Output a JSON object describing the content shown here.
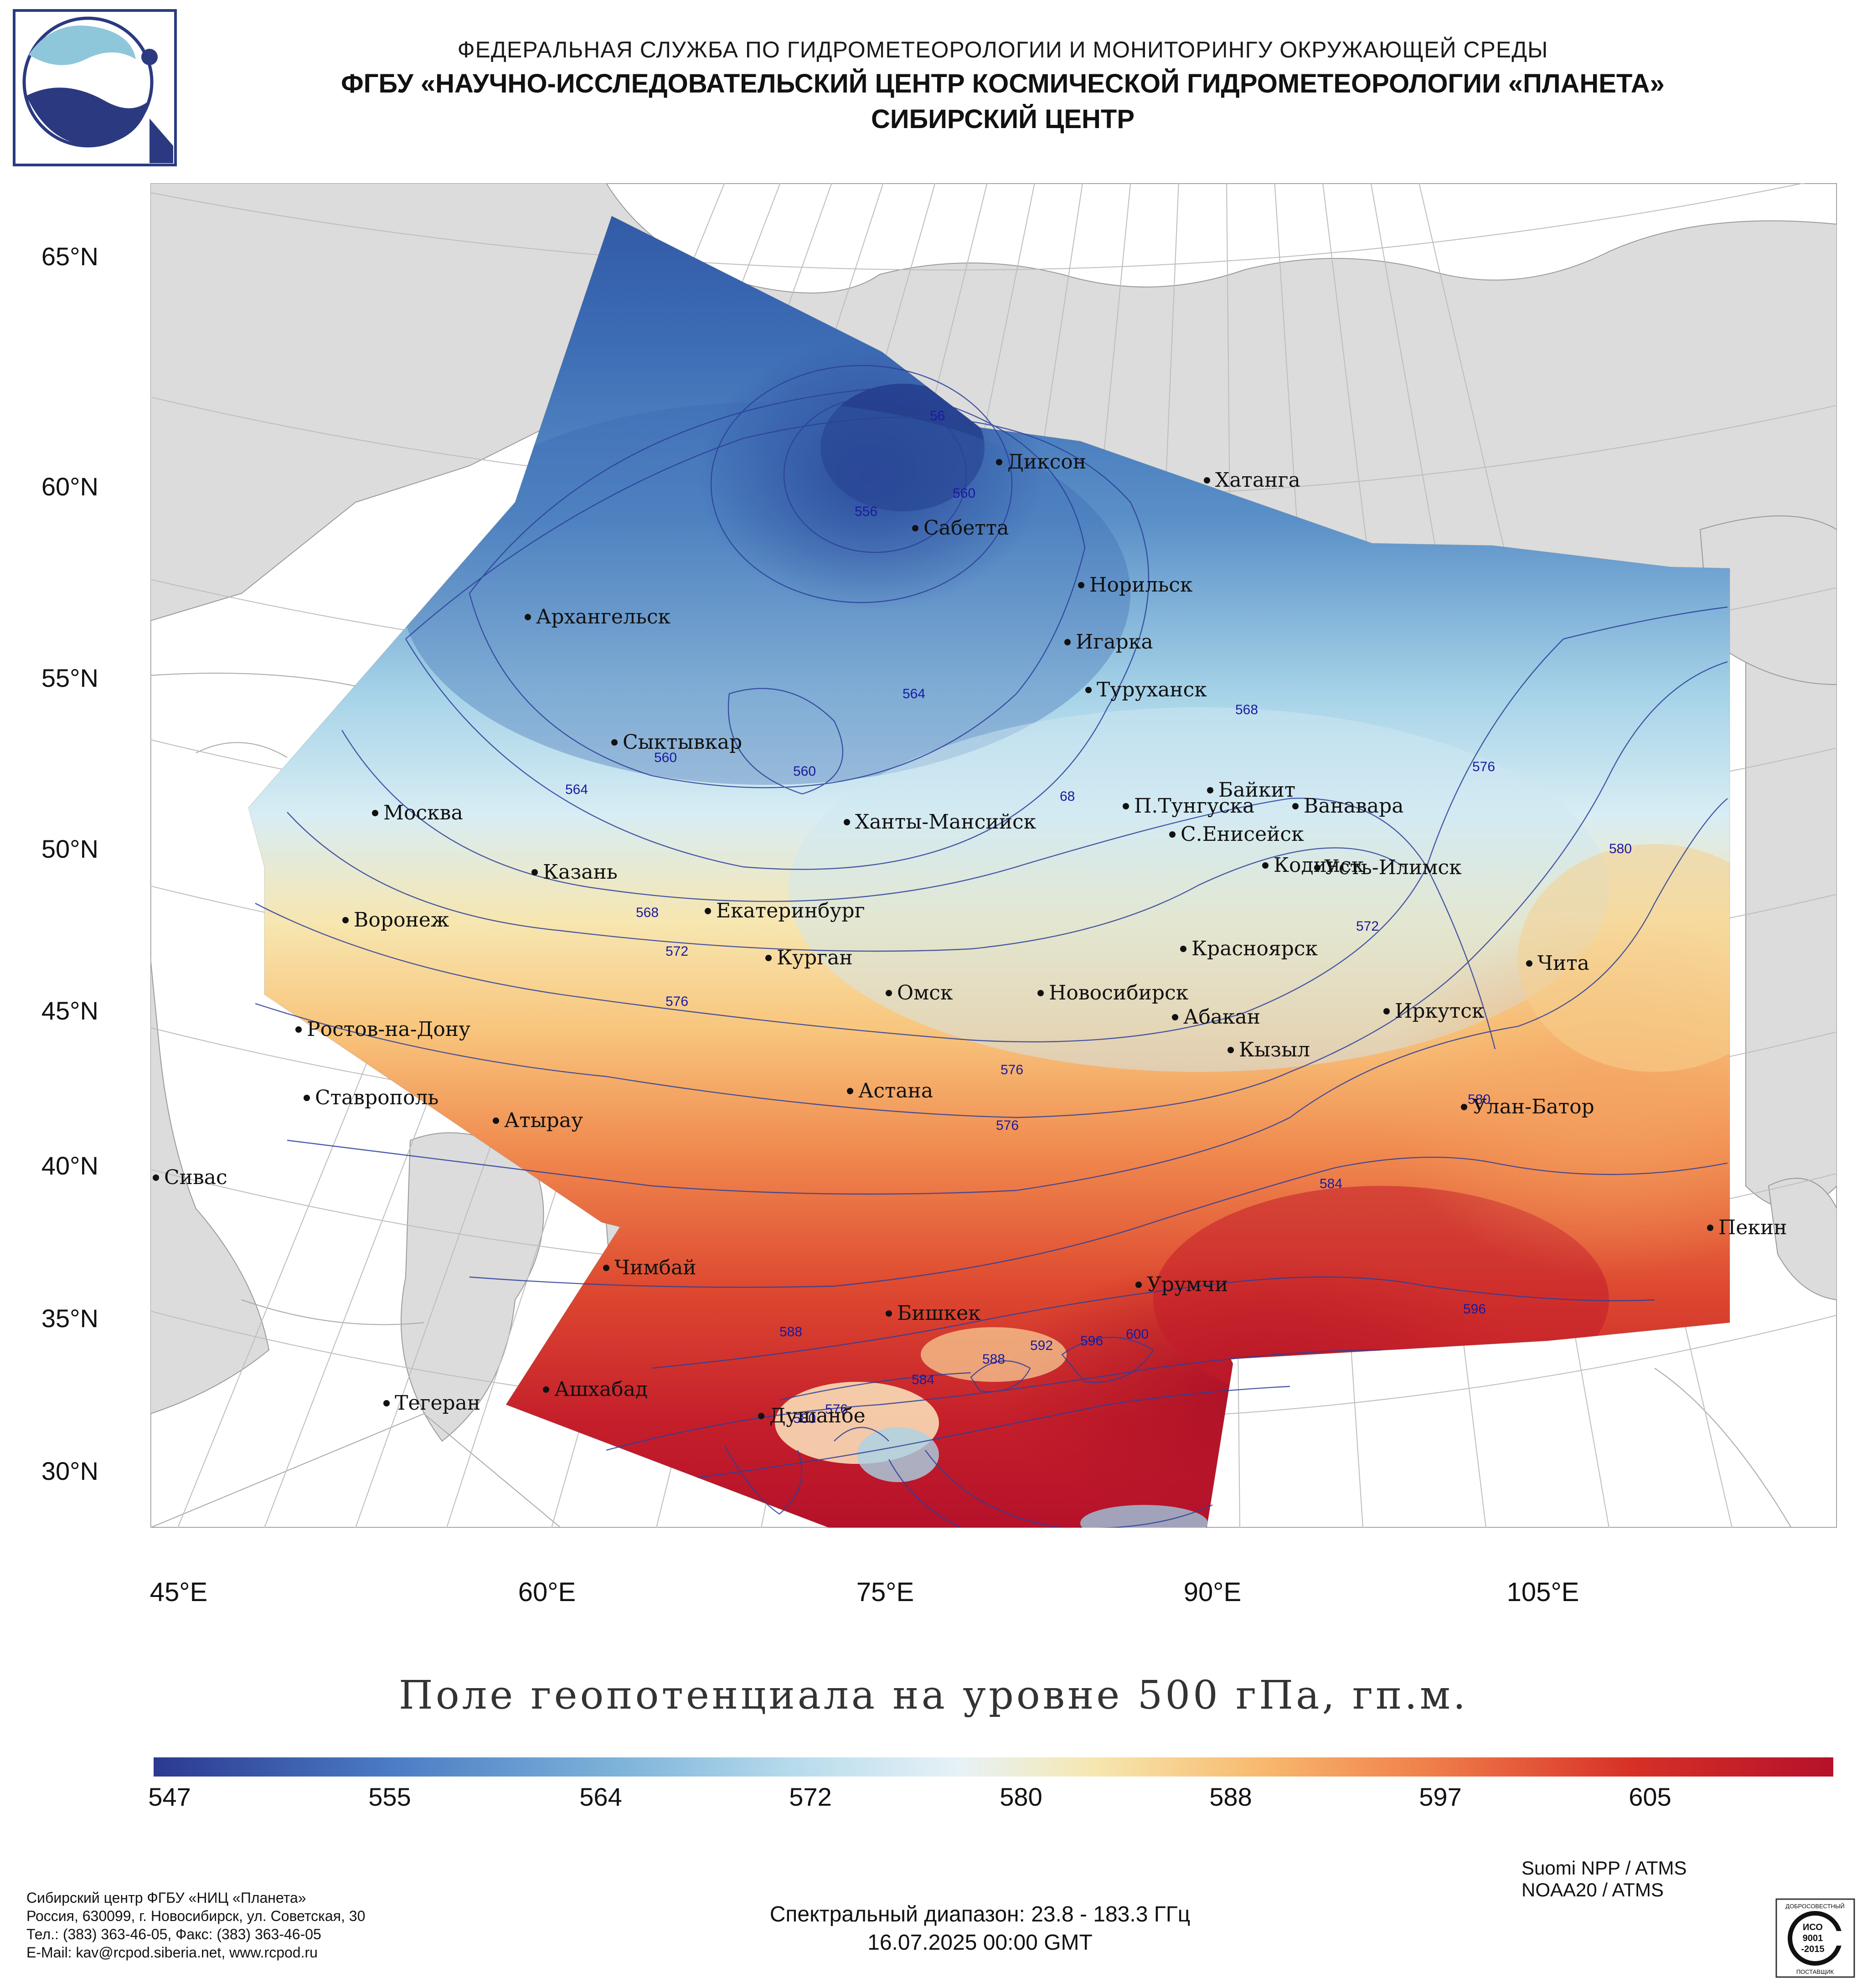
{
  "header": {
    "line1": "ФЕДЕРАЛЬНАЯ СЛУЖБА ПО ГИДРОМЕТЕОРОЛОГИИ И МОНИТОРИНГУ ОКРУЖАЮЩЕЙ СРЕДЫ",
    "line2": "ФГБУ «НАУЧНО-ИССЛЕДОВАТЕЛЬСКИЙ ЦЕНТР КОСМИЧЕСКОЙ ГИДРОМЕТЕОРОЛОГИИ «ПЛАНЕТА»",
    "line3": "СИБИРСКИЙ ЦЕНТР"
  },
  "lat_labels": [
    "65°N",
    "60°N",
    "55°N",
    "50°N",
    "45°N",
    "40°N",
    "35°N",
    "30°N"
  ],
  "lon_labels": [
    "45°E",
    "60°E",
    "75°E",
    "90°E",
    "105°E"
  ],
  "cities": [
    {
      "name": "Диксон"
    },
    {
      "name": "Хатанга"
    },
    {
      "name": "Сабетта"
    },
    {
      "name": "Норильск"
    },
    {
      "name": "Архангельск"
    },
    {
      "name": "Игарка"
    },
    {
      "name": "Туруханск"
    },
    {
      "name": "Сыктывкар"
    },
    {
      "name": "Москва"
    },
    {
      "name": "Байкит"
    },
    {
      "name": "П.Тунгуска"
    },
    {
      "name": "Ванавара"
    },
    {
      "name": "Ханты-Мансийск"
    },
    {
      "name": "С.Енисейск"
    },
    {
      "name": "Казань"
    },
    {
      "name": "Кодинск"
    },
    {
      "name": "Усть-Илимск"
    },
    {
      "name": "Воронеж"
    },
    {
      "name": "Екатеринбург"
    },
    {
      "name": "Курган"
    },
    {
      "name": "Красноярск"
    },
    {
      "name": "Чита"
    },
    {
      "name": "Омск"
    },
    {
      "name": "Новосибирск"
    },
    {
      "name": "Ростов-на-Дону"
    },
    {
      "name": "Абакан"
    },
    {
      "name": "Иркутск"
    },
    {
      "name": "Кызыл"
    },
    {
      "name": "Астана"
    },
    {
      "name": "Ставрополь"
    },
    {
      "name": "Улан-Батор"
    },
    {
      "name": "Атырау"
    },
    {
      "name": "Сивас"
    },
    {
      "name": "Пекин"
    },
    {
      "name": "Чимбай"
    },
    {
      "name": "Урумчи"
    },
    {
      "name": "Бишкек"
    },
    {
      "name": "Ашхабад"
    },
    {
      "name": "Тегеран"
    },
    {
      "name": "Душанбе"
    }
  ],
  "contour_labels": [
    "56",
    "556",
    "560",
    "564",
    "568",
    "560",
    "560",
    "564",
    "568",
    "68",
    "572",
    "576",
    "576",
    "580",
    "572",
    "576",
    "576",
    "580",
    "584",
    "588",
    "588",
    "592",
    "596",
    "600",
    "584",
    "576",
    "580",
    "596"
  ],
  "title": "Поле геопотенциала на уровне 500 гПа, гп.м.",
  "colorbar": {
    "labels": [
      "547",
      "555",
      "564",
      "572",
      "580",
      "588",
      "597",
      "605"
    ],
    "colors": [
      "#2b3990",
      "#4a7bc4",
      "#9fd1e6",
      "#eef6f8",
      "#f7e3a3",
      "#f59a5a",
      "#d73027",
      "#b5112a"
    ]
  },
  "footer_left": [
    "Сибирский центр ФГБУ «НИЦ «Планета»",
    "Россия, 630099, г. Новосибирск, ул. Советская, 30",
    "Тел.: (383) 363-46-05, Факс: (383) 363-46-05",
    "E-Mail: kav@rcpod.siberia.net, www.rcpod.ru"
  ],
  "footer_center": [
    "Спектральный диапазон: 23.8 - 183.3 ГГц",
    "16.07.2025 00:00 GMT"
  ],
  "satellites": [
    "Suomi NPP / ATMS",
    "NOAA20 / ATMS"
  ],
  "iso_badge": {
    "top": "ДОБРОСОВЕСТНЫЙ",
    "mid1": "ИСО",
    "mid2": "9001",
    "mid3": "-2015",
    "bottom": "ПОСТАВЩИК"
  }
}
